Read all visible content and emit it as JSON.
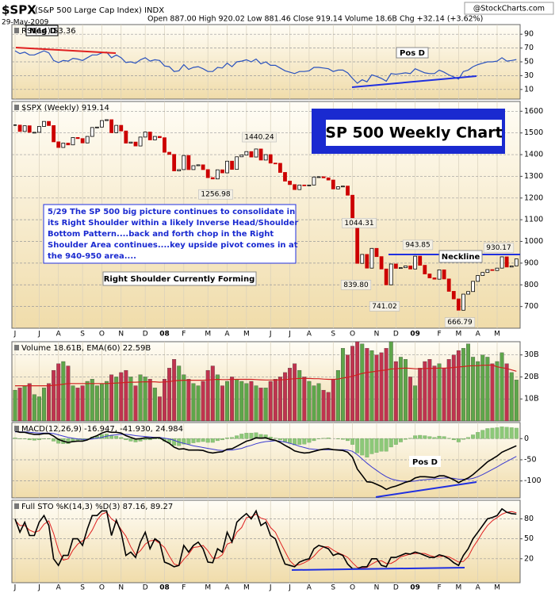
{
  "header": {
    "symbol": "$SPX",
    "name": "(S&P 500 Large Cap Index) INDX",
    "date": "29-May-2009",
    "quote": "Open 887.00 High 920.02 Low 881.46 Close 919.14 Volume 18.6B Chg +32.14 (+3.62%)",
    "source": "@StockCharts.com"
  },
  "chart_data": [
    {
      "type": "line",
      "title": "RSI(14) 53.36",
      "color": "#2a52be",
      "values": [
        66,
        62,
        64,
        60,
        60,
        63,
        66,
        63,
        52,
        49,
        52,
        51,
        55,
        54,
        52,
        56,
        60,
        60,
        63,
        64,
        56,
        60,
        56,
        49,
        50,
        48,
        53,
        56,
        51,
        53,
        52,
        44,
        43,
        36,
        37,
        46,
        39,
        42,
        43,
        40,
        36,
        36,
        42,
        41,
        48,
        43,
        50,
        51,
        53,
        50,
        54,
        47,
        50,
        45,
        45,
        41,
        37,
        35,
        33,
        36,
        36,
        37,
        42,
        42,
        41,
        40,
        36,
        38,
        38,
        34,
        26,
        19,
        24,
        21,
        31,
        29,
        26,
        22,
        33,
        32,
        33,
        34,
        33,
        40,
        37,
        34,
        33,
        33,
        38,
        35,
        31,
        28,
        25,
        36,
        38,
        43,
        46,
        48,
        50,
        50,
        51,
        56,
        51,
        52,
        53.36
      ],
      "ylim": [
        -4,
        104
      ],
      "yticks": [
        10,
        30,
        50,
        70,
        90
      ],
      "grid": true,
      "annotations": {
        "left": "Neg D",
        "right": "Pos D"
      }
    },
    {
      "type": "candlestick",
      "title": "$SPX (Weekly) 919.14",
      "up_color": "#000000",
      "down_color": "#cc0000",
      "categories": [
        "J",
        null,
        null,
        null,
        null,
        "J",
        null,
        null,
        null,
        "A",
        null,
        null,
        null,
        null,
        "S",
        null,
        null,
        null,
        "O",
        null,
        null,
        null,
        "N",
        null,
        null,
        null,
        null,
        "D",
        null,
        null,
        null,
        "08",
        null,
        null,
        null,
        "F",
        null,
        null,
        null,
        null,
        "M",
        null,
        null,
        null,
        "A",
        null,
        null,
        null,
        "M",
        null,
        null,
        null,
        null,
        "J",
        null,
        null,
        null,
        "J",
        null,
        null,
        null,
        "A",
        null,
        null,
        null,
        null,
        "S",
        null,
        null,
        null,
        "O",
        null,
        null,
        null,
        null,
        "N",
        null,
        null,
        null,
        "D",
        null,
        null,
        null,
        "09",
        null,
        null,
        null,
        null,
        "F",
        null,
        null,
        null,
        "M",
        null,
        null,
        null,
        "A",
        null,
        null,
        null,
        "M",
        null,
        null,
        null,
        null
      ],
      "values": [
        1536,
        1507,
        1533,
        1503,
        1503,
        1530,
        1553,
        1534,
        1459,
        1433,
        1453,
        1445,
        1479,
        1474,
        1454,
        1484,
        1525,
        1527,
        1557,
        1561,
        1501,
        1535,
        1509,
        1453,
        1458,
        1440,
        1481,
        1504,
        1468,
        1484,
        1478,
        1411,
        1401,
        1325,
        1331,
        1396,
        1331,
        1349,
        1353,
        1331,
        1294,
        1288,
        1330,
        1316,
        1370,
        1332,
        1390,
        1398,
        1414,
        1389,
        1426,
        1375,
        1400,
        1361,
        1360,
        1318,
        1278,
        1262,
        1239,
        1260,
        1257,
        1260,
        1297,
        1298,
        1293,
        1283,
        1242,
        1252,
        1255,
        1213,
        1100,
        899,
        940,
        877,
        968,
        930,
        873,
        800,
        896,
        876,
        879,
        887,
        873,
        932,
        890,
        850,
        832,
        826,
        869,
        827,
        770,
        735,
        683,
        757,
        769,
        816,
        843,
        857,
        870,
        866,
        877,
        929,
        882,
        887,
        919.14
      ],
      "ylim": [
        600,
        1645
      ],
      "yticks": [
        700,
        800,
        900,
        1000,
        1100,
        1200,
        1300,
        1400,
        1500,
        1600
      ],
      "grid": true,
      "point_labels": [
        1440.24,
        1256.98,
        1044.31,
        943.85,
        930.17,
        {
          "value": 839.8,
          "label": "839.80"
        },
        741.02,
        666.79
      ],
      "annotations": {
        "headline": "SP 500 Weekly Chart",
        "neckline": "Neckline",
        "note": [
          "5/29  The SP 500 big picture continues to consolidate in",
          "its Right Shoulder within a likely Inverse Head/Shoulder",
          "Bottom Pattern....back and forth chop in the Right",
          "Shoulder Area continues....key upside pivot comes in at",
          "the 940-950 area...."
        ],
        "shoulder": "Right Shoulder Currently Forming"
      }
    },
    {
      "type": "bar",
      "title": "Volume 18.61B, EMA(60) 22.59B",
      "up_color": "#5ea64a",
      "down_color": "#c0334f",
      "values": [
        14,
        15,
        16,
        17,
        12,
        11,
        15,
        17,
        23,
        26,
        27,
        25,
        16,
        15,
        16,
        18,
        19,
        16,
        17,
        18,
        21,
        20,
        22,
        23,
        20,
        16,
        21,
        20,
        19,
        15,
        11,
        19,
        24,
        28,
        25,
        21,
        19,
        17,
        16,
        18,
        23,
        25,
        21,
        16,
        18,
        20,
        19,
        18,
        17,
        18,
        16,
        15,
        15,
        18,
        19,
        20,
        22,
        24,
        26,
        23,
        20,
        18,
        16,
        17,
        14,
        13,
        19,
        23,
        33,
        30,
        34,
        36,
        35,
        33,
        32,
        30,
        31,
        33,
        36,
        27,
        29,
        28,
        20,
        16,
        24,
        27,
        28,
        25,
        26,
        24,
        28,
        30,
        32,
        33,
        35,
        29,
        27,
        30,
        29,
        26,
        27,
        31,
        26,
        22,
        18.61
      ],
      "ema": {
        "color": "#d02020",
        "values": [
          16,
          16,
          16,
          16,
          16,
          16,
          16,
          16,
          16.2,
          16.4,
          16.7,
          17,
          17,
          17,
          17,
          17,
          17,
          17,
          17,
          17,
          17.1,
          17.2,
          17.3,
          17.5,
          17.6,
          17.6,
          17.7,
          17.8,
          17.8,
          17.8,
          17.6,
          17.7,
          17.9,
          18.2,
          18.4,
          18.5,
          18.5,
          18.5,
          18.5,
          18.5,
          18.6,
          18.8,
          18.9,
          18.8,
          18.8,
          18.9,
          18.9,
          18.9,
          18.9,
          18.9,
          18.8,
          18.7,
          18.6,
          18.6,
          18.6,
          18.7,
          18.8,
          19,
          19.2,
          19.3,
          19.3,
          19.3,
          19.2,
          19.2,
          19,
          18.9,
          18.9,
          19,
          19.5,
          19.8,
          20.3,
          21,
          21.6,
          22,
          22.3,
          22.6,
          22.9,
          23.2,
          23.6,
          23.7,
          23.9,
          24,
          23.9,
          23.7,
          23.7,
          23.8,
          23.9,
          23.9,
          24,
          24,
          24.1,
          24.3,
          24.5,
          24.7,
          25,
          25.1,
          25.1,
          25.3,
          25.3,
          25.4,
          24.6,
          24.2,
          23.8,
          23.2,
          22.59
        ]
      },
      "ylim": [
        0,
        36
      ],
      "yticks": [
        {
          "value": 10,
          "label": "10B"
        },
        {
          "value": 20,
          "label": "20B"
        },
        {
          "value": 30,
          "label": "30B"
        }
      ],
      "grid": true
    },
    {
      "type": "macd",
      "title": "MACD(12,26,9) -16.947, -41.930, 24.984",
      "macd": {
        "color": "#000000",
        "values": [
          18,
          15,
          15,
          12,
          10,
          10,
          12,
          12,
          6,
          -2,
          -6,
          -9,
          -7,
          -6,
          -6,
          -3,
          3,
          7,
          13,
          17,
          15,
          15,
          13,
          7,
          3,
          -1,
          0,
          2,
          1,
          2,
          2,
          -5,
          -11,
          -20,
          -25,
          -24,
          -27,
          -27,
          -27,
          -28,
          -32,
          -34,
          -32,
          -31,
          -25,
          -24,
          -18,
          -12,
          -6,
          -3,
          2,
          1,
          2,
          -2,
          -4,
          -9,
          -16,
          -22,
          -29,
          -32,
          -34,
          -33,
          -30,
          -27,
          -25,
          -24,
          -26,
          -27,
          -28,
          -32,
          -44,
          -72,
          -87,
          -102,
          -103,
          -108,
          -113,
          -120,
          -115,
          -112,
          -108,
          -103,
          -100,
          -93,
          -90,
          -90,
          -91,
          -92,
          -88,
          -88,
          -92,
          -97,
          -104,
          -98,
          -93,
          -85,
          -75,
          -65,
          -55,
          -48,
          -41,
          -32,
          -27,
          -22,
          -16.947
        ]
      },
      "signal": {
        "color": "#3a3ad0",
        "values": [
          16,
          16,
          16,
          15,
          14,
          13,
          13,
          13,
          12,
          9,
          6,
          3,
          1,
          -1,
          -2,
          -2,
          -1,
          1,
          3,
          6,
          8,
          9,
          10,
          10,
          9,
          7,
          6,
          5,
          4,
          3,
          3,
          1,
          -1,
          -4,
          -8,
          -11,
          -14,
          -17,
          -19,
          -21,
          -23,
          -25,
          -27,
          -28,
          -27,
          -27,
          -25,
          -23,
          -19,
          -16,
          -12,
          -9,
          -7,
          -6,
          -5,
          -6,
          -8,
          -11,
          -14,
          -18,
          -21,
          -24,
          -25,
          -26,
          -26,
          -26,
          -26,
          -26,
          -26,
          -27,
          -30,
          -38,
          -48,
          -58,
          -67,
          -75,
          -83,
          -90,
          -95,
          -98,
          -100,
          -101,
          -101,
          -100,
          -98,
          -97,
          -96,
          -95,
          -94,
          -93,
          -93,
          -94,
          -96,
          -96,
          -96,
          -94,
          -90,
          -85,
          -79,
          -73,
          -67,
          -60,
          -54,
          -48,
          -41.93
        ]
      },
      "histogram": {
        "color": "#8cc878",
        "values": [
          2,
          -1,
          -1,
          -3,
          -4,
          -3,
          -1,
          -1,
          -6,
          -11,
          -12,
          -12,
          -8,
          -5,
          -4,
          -1,
          4,
          6,
          10,
          11,
          7,
          6,
          3,
          -3,
          -6,
          -8,
          -6,
          -3,
          -3,
          -1,
          -1,
          -6,
          -10,
          -16,
          -17,
          -13,
          -13,
          -10,
          -8,
          -7,
          -9,
          -9,
          -5,
          -3,
          2,
          3,
          7,
          11,
          13,
          13,
          14,
          10,
          9,
          4,
          1,
          -3,
          -8,
          -11,
          -15,
          -14,
          -13,
          -9,
          -5,
          -1,
          1,
          2,
          0,
          -1,
          -2,
          -5,
          -14,
          -34,
          -39,
          -44,
          -36,
          -33,
          -30,
          -30,
          -20,
          -14,
          -8,
          -2,
          1,
          7,
          8,
          7,
          5,
          3,
          6,
          5,
          1,
          -3,
          -8,
          -2,
          3,
          9,
          15,
          20,
          24,
          25,
          26,
          28,
          27,
          26,
          24.984
        ]
      },
      "ylim": [
        -140,
        38
      ],
      "yticks": [
        -100,
        -50,
        0
      ],
      "grid": true,
      "annotations": {
        "right": "Pos D"
      }
    },
    {
      "type": "stochastic",
      "title": "Full STO %K(14,3) %D(3) 87.16, 89.27",
      "k": {
        "color": "#000000",
        "values": [
          80,
          60,
          75,
          55,
          55,
          75,
          85,
          70,
          20,
          10,
          25,
          25,
          50,
          50,
          40,
          65,
          85,
          85,
          92,
          92,
          55,
          78,
          60,
          25,
          30,
          22,
          45,
          60,
          35,
          50,
          45,
          15,
          12,
          8,
          10,
          40,
          30,
          40,
          45,
          35,
          15,
          14,
          35,
          30,
          60,
          45,
          75,
          82,
          88,
          80,
          92,
          70,
          75,
          55,
          50,
          30,
          12,
          10,
          8,
          15,
          18,
          20,
          35,
          40,
          38,
          35,
          25,
          28,
          25,
          12,
          5,
          5,
          8,
          8,
          20,
          20,
          10,
          8,
          22,
          22,
          25,
          28,
          27,
          30,
          28,
          25,
          22,
          22,
          26,
          24,
          20,
          14,
          10,
          25,
          35,
          50,
          60,
          70,
          80,
          82,
          85,
          95,
          90,
          88,
          87.16
        ]
      },
      "d": {
        "color": "#e02020",
        "values": [
          78,
          70,
          70,
          63,
          60,
          62,
          72,
          77,
          58,
          33,
          18,
          20,
          33,
          42,
          47,
          52,
          63,
          78,
          87,
          90,
          80,
          75,
          64,
          54,
          38,
          26,
          32,
          42,
          47,
          48,
          43,
          37,
          24,
          12,
          10,
          19,
          27,
          37,
          38,
          40,
          32,
          21,
          21,
          26,
          42,
          45,
          60,
          67,
          82,
          83,
          87,
          81,
          79,
          67,
          60,
          45,
          31,
          17,
          10,
          11,
          14,
          18,
          24,
          32,
          38,
          38,
          33,
          29,
          26,
          22,
          14,
          7,
          6,
          7,
          12,
          16,
          17,
          13,
          13,
          17,
          23,
          25,
          27,
          28,
          28,
          28,
          25,
          23,
          23,
          24,
          23,
          19,
          15,
          16,
          23,
          37,
          48,
          60,
          70,
          77,
          82,
          87,
          90,
          91,
          89.27
        ]
      },
      "ylim": [
        -16,
        108
      ],
      "yticks": [
        20,
        50,
        80
      ],
      "grid": true
    }
  ]
}
